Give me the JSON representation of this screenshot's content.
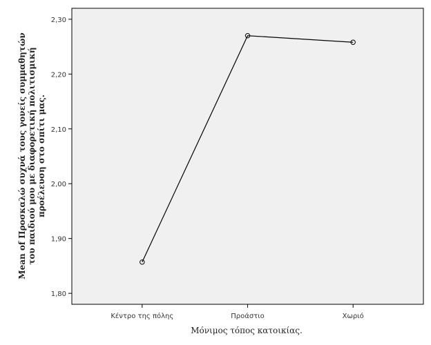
{
  "chart_data": {
    "type": "line",
    "categories": [
      "Κέντρο της πόλης",
      "Προάστιο",
      "Χωριό"
    ],
    "series": [
      {
        "values": [
          1.857,
          2.27,
          2.258
        ]
      }
    ],
    "xlabel": "Μόνιμος τόπος κατοικίας.",
    "ylabel_lines": [
      "Mean of Προσκαλώ συχνά τους γονείς συμμαθητών",
      "του παιδιού μου με διαφορετική πολιτισμική",
      "προέλευση στο σπίτι μας."
    ],
    "ylim": [
      1.78,
      2.32
    ],
    "yticks": [
      1.8,
      1.9,
      2.0,
      2.1,
      2.2,
      2.3
    ],
    "ytick_labels": [
      "1,80",
      "1,90",
      "2,00",
      "2,10",
      "2,20",
      "2,30"
    ],
    "grid": false,
    "marker": "open-circle",
    "colors": {
      "plot_background": "#f0f0f0",
      "line": "#000000",
      "frame": "#000000"
    }
  }
}
